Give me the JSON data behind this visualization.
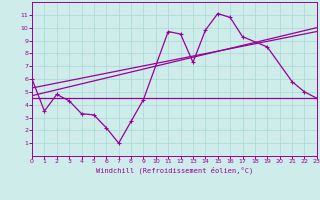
{
  "bg_color": "#ceecea",
  "line_color": "#990099",
  "grid_color": "#aad8d5",
  "xlabel": "Windchill (Refroidissement éolien,°C)",
  "xlim": [
    0,
    23
  ],
  "ylim": [
    0,
    12
  ],
  "xticks": [
    0,
    1,
    2,
    3,
    4,
    5,
    6,
    7,
    8,
    9,
    10,
    11,
    12,
    13,
    14,
    15,
    16,
    17,
    18,
    19,
    20,
    21,
    22,
    23
  ],
  "yticks": [
    1,
    2,
    3,
    4,
    5,
    6,
    7,
    8,
    9,
    10,
    11
  ],
  "line1_x": [
    0,
    1,
    2,
    3,
    4,
    5,
    6,
    7,
    8,
    9,
    11,
    12,
    13,
    14,
    15,
    16,
    17,
    19,
    21,
    22,
    23
  ],
  "line1_y": [
    6.0,
    3.5,
    4.8,
    4.3,
    3.3,
    3.2,
    2.2,
    1.0,
    2.7,
    4.4,
    9.7,
    9.5,
    7.3,
    9.8,
    11.1,
    10.8,
    9.3,
    8.5,
    5.8,
    5.0,
    4.5
  ],
  "line2_x": [
    0,
    9,
    19,
    23
  ],
  "line2_y": [
    4.5,
    4.5,
    4.5,
    4.5
  ],
  "line3_x": [
    0,
    23
  ],
  "line3_y": [
    4.7,
    10.0
  ],
  "line4_x": [
    0,
    23
  ],
  "line4_y": [
    5.3,
    9.7
  ]
}
